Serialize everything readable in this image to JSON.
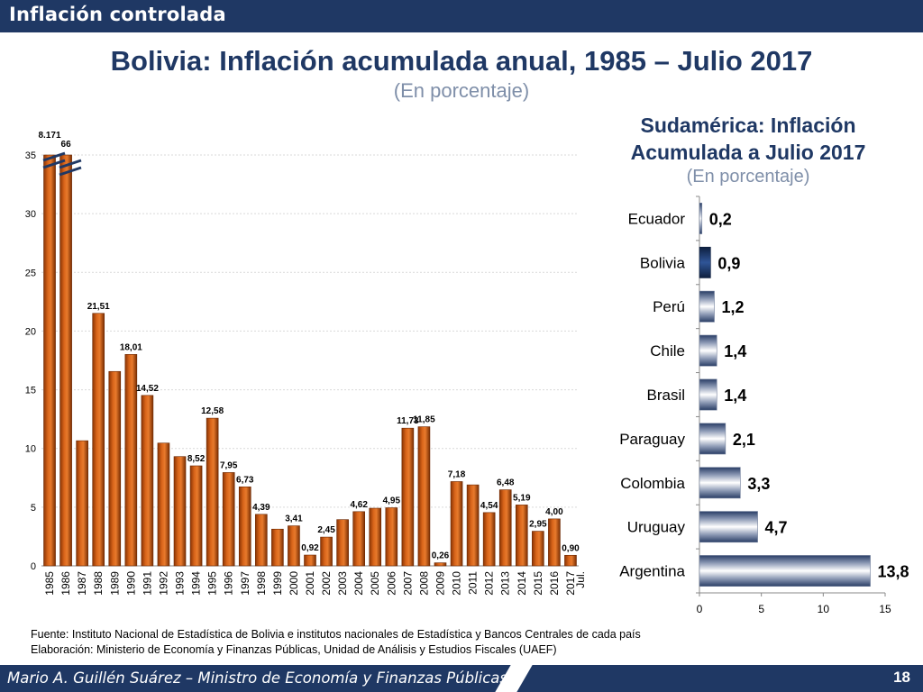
{
  "header": {
    "section_title": "Inflación controlada"
  },
  "title": "Bolivia: Inflación acumulada anual, 1985 – Julio 2017",
  "subtitle": "(En porcentaje)",
  "right_panel": {
    "title_line1": "Sudamérica: Inflación",
    "title_line2": "Acumulada a Julio 2017",
    "subtitle": "(En porcentaje)"
  },
  "colors": {
    "bolivia_bar": "#c0500e",
    "bolivia_bar_dark": "#7a2e02",
    "navy": "#1f3864",
    "grid": "#d9d9d9"
  },
  "chart_data": [
    {
      "type": "bar",
      "title": "Bolivia: Inflación acumulada anual, 1985 – Julio 2017",
      "ylim": [
        0,
        35
      ],
      "yticks": [
        0,
        5,
        10,
        15,
        20,
        25,
        30,
        35
      ],
      "grid": true,
      "axis_break": true,
      "categories": [
        "1985",
        "1986",
        "1987",
        "1988",
        "1989",
        "1990",
        "1991",
        "1992",
        "1993",
        "1994",
        "1995",
        "1996",
        "1997",
        "1998",
        "1999",
        "2000",
        "2001",
        "2002",
        "2003",
        "2004",
        "2005",
        "2006",
        "2007",
        "2008",
        "2009",
        "2010",
        "2011",
        "2012",
        "2013",
        "2014",
        "2015",
        "2016",
        "2017"
      ],
      "category_notes": {
        "2017": "Jul."
      },
      "values": [
        8171,
        66,
        10.66,
        21.51,
        16.56,
        18.01,
        14.52,
        10.46,
        9.31,
        8.52,
        12.58,
        7.95,
        6.73,
        4.39,
        3.13,
        3.41,
        0.92,
        2.45,
        3.94,
        4.62,
        4.91,
        4.95,
        11.73,
        11.85,
        0.26,
        7.18,
        6.9,
        4.54,
        6.48,
        5.19,
        2.95,
        4.0,
        0.9
      ],
      "value_labels": [
        "8.171",
        "66",
        "",
        "21,51",
        "",
        "18,01",
        "14,52",
        "",
        "",
        "8,52",
        "12,58",
        "7,95",
        "6,73",
        "4,39",
        "",
        "3,41",
        "0,92",
        "2,45",
        "",
        "4,62",
        "",
        "4,95",
        "11,73",
        "11,85",
        "0,26",
        "7,18",
        "",
        "4,54",
        "6,48",
        "5,19",
        "2,95",
        "4,00",
        "0,90"
      ]
    },
    {
      "type": "bar",
      "orientation": "horizontal",
      "title": "Sudamérica: Inflación Acumulada a Julio 2017",
      "xlim": [
        0,
        15
      ],
      "xticks": [
        "0",
        "5",
        "10",
        "15"
      ],
      "categories": [
        "Ecuador",
        "Bolivia",
        "Perú",
        "Chile",
        "Brasil",
        "Paraguay",
        "Colombia",
        "Uruguay",
        "Argentina"
      ],
      "values": [
        0.2,
        0.9,
        1.2,
        1.4,
        1.4,
        2.1,
        3.3,
        4.7,
        13.8
      ],
      "value_labels": [
        "0,2",
        "0,9",
        "1,2",
        "1,4",
        "1,4",
        "2,1",
        "3,3",
        "4,7",
        "13,8"
      ],
      "highlight": "Bolivia"
    }
  ],
  "source": {
    "line1": "Fuente: Instituto Nacional de Estadística de Bolivia e institutos nacionales de Estadística y Bancos Centrales de cada país",
    "line2": "Elaboración: Ministerio de Economía y Finanzas Públicas, Unidad de Análisis y Estudios Fiscales (UAEF)"
  },
  "footer": {
    "author": "Mario A. Guillén Suárez – Ministro de Economía y Finanzas Públicas",
    "page_number": "18"
  }
}
